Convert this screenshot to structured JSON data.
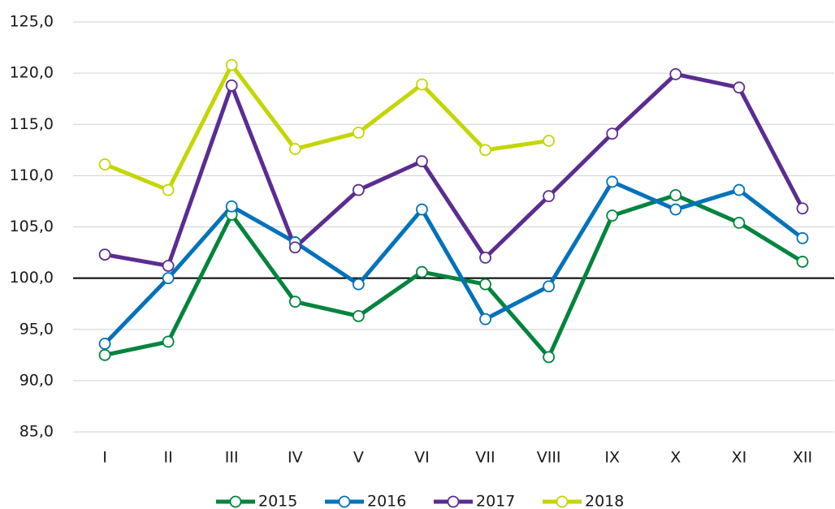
{
  "chart_data": {
    "type": "line",
    "categories": [
      "I",
      "II",
      "III",
      "IV",
      "V",
      "VI",
      "VII",
      "VIII",
      "IX",
      "X",
      "XI",
      "XII"
    ],
    "series": [
      {
        "name": "2015",
        "color": "#00843d",
        "values": [
          92.5,
          93.8,
          106.2,
          97.7,
          96.3,
          100.6,
          99.4,
          92.3,
          106.1,
          108.1,
          105.4,
          101.6
        ]
      },
      {
        "name": "2016",
        "color": "#0072bc",
        "values": [
          93.6,
          100.0,
          107.0,
          103.5,
          99.4,
          106.7,
          96.0,
          99.2,
          109.4,
          106.7,
          108.6,
          103.9
        ]
      },
      {
        "name": "2017",
        "color": "#5b2c91",
        "values": [
          102.3,
          101.2,
          118.8,
          103.0,
          108.6,
          111.4,
          102.0,
          108.0,
          114.1,
          119.9,
          118.6,
          106.8
        ]
      },
      {
        "name": "2018",
        "color": "#c4d600",
        "values": [
          111.1,
          108.6,
          120.8,
          112.6,
          114.2,
          118.9,
          112.5,
          113.4,
          null,
          null,
          null,
          null
        ]
      }
    ],
    "ylim": [
      85,
      125
    ],
    "yticks": [
      {
        "value": 85,
        "label": "85,0"
      },
      {
        "value": 90,
        "label": "90,0"
      },
      {
        "value": 95,
        "label": "95,0"
      },
      {
        "value": 100,
        "label": "100,0"
      },
      {
        "value": 105,
        "label": "105,0"
      },
      {
        "value": 110,
        "label": "110,0"
      },
      {
        "value": 115,
        "label": "115,0"
      },
      {
        "value": 120,
        "label": "120,0"
      },
      {
        "value": 125,
        "label": "125,0"
      }
    ],
    "baseline": 100,
    "grid": true,
    "legend": "bottom"
  }
}
